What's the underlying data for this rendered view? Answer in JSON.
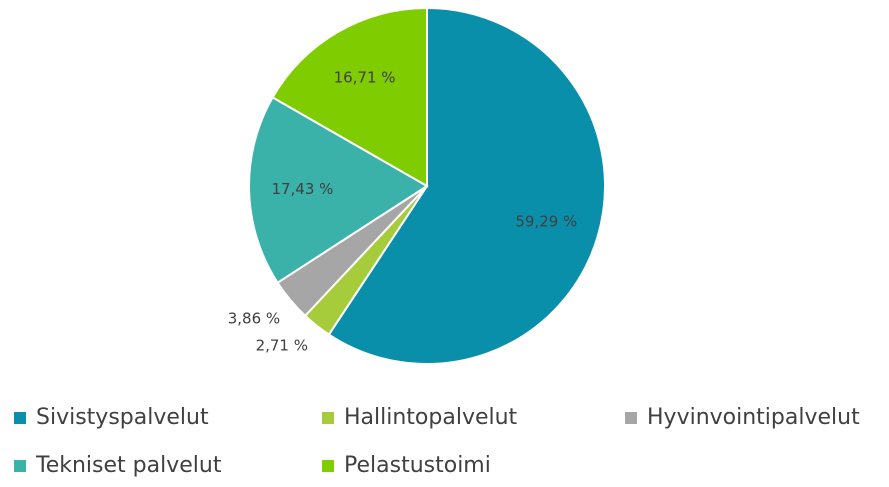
{
  "chart_data": {
    "type": "pie",
    "categories": [
      "Sivistyspalvelut",
      "Hallintopalvelut",
      "Hyvinvointipalvelut",
      "Tekniset palvelut",
      "Pelastustoimi"
    ],
    "values": [
      59.29,
      2.71,
      3.86,
      17.43,
      16.71
    ],
    "value_labels": [
      "59,29 %",
      "2,71 %",
      "3,86 %",
      "17,43 %",
      "16,71 %"
    ],
    "colors": [
      "#0a8fab",
      "#a6cc3c",
      "#a6a6a6",
      "#3ab2aa",
      "#7fcc00"
    ],
    "legend": "bottom"
  }
}
